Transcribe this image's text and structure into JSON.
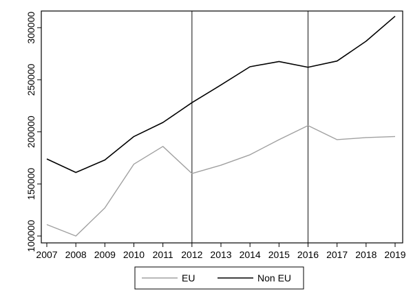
{
  "chart_data": {
    "type": "line",
    "title": "",
    "xlabel": "",
    "ylabel": "",
    "x": [
      2007,
      2008,
      2009,
      2010,
      2011,
      2012,
      2013,
      2014,
      2015,
      2016,
      2017,
      2018,
      2019
    ],
    "xlim": [
      2007,
      2019
    ],
    "ylim": [
      100000,
      316000
    ],
    "y_ticks": [
      100000,
      150000,
      200000,
      250000,
      300000
    ],
    "y_tick_labels": [
      "100000",
      "150000",
      "200000",
      "250000",
      "300000"
    ],
    "x_tick_labels": [
      "2007",
      "2008",
      "2009",
      "2010",
      "2011",
      "2012",
      "2013",
      "2014",
      "2015",
      "2016",
      "2017",
      "2018",
      "2019"
    ],
    "vertical_lines": [
      2012,
      2016
    ],
    "grid": false,
    "legend_position": "bottom",
    "series": [
      {
        "name": "EU",
        "color": "#a0a0a0",
        "values": [
          111000,
          100000,
          127000,
          169000,
          186000,
          160000,
          168000,
          178000,
          192500,
          206000,
          192500,
          194500,
          195500
        ]
      },
      {
        "name": "Non EU",
        "color": "#000000",
        "values": [
          174000,
          161000,
          173000,
          195500,
          209000,
          228000,
          245000,
          262500,
          267500,
          262000,
          268000,
          287000,
          311000
        ]
      }
    ]
  }
}
